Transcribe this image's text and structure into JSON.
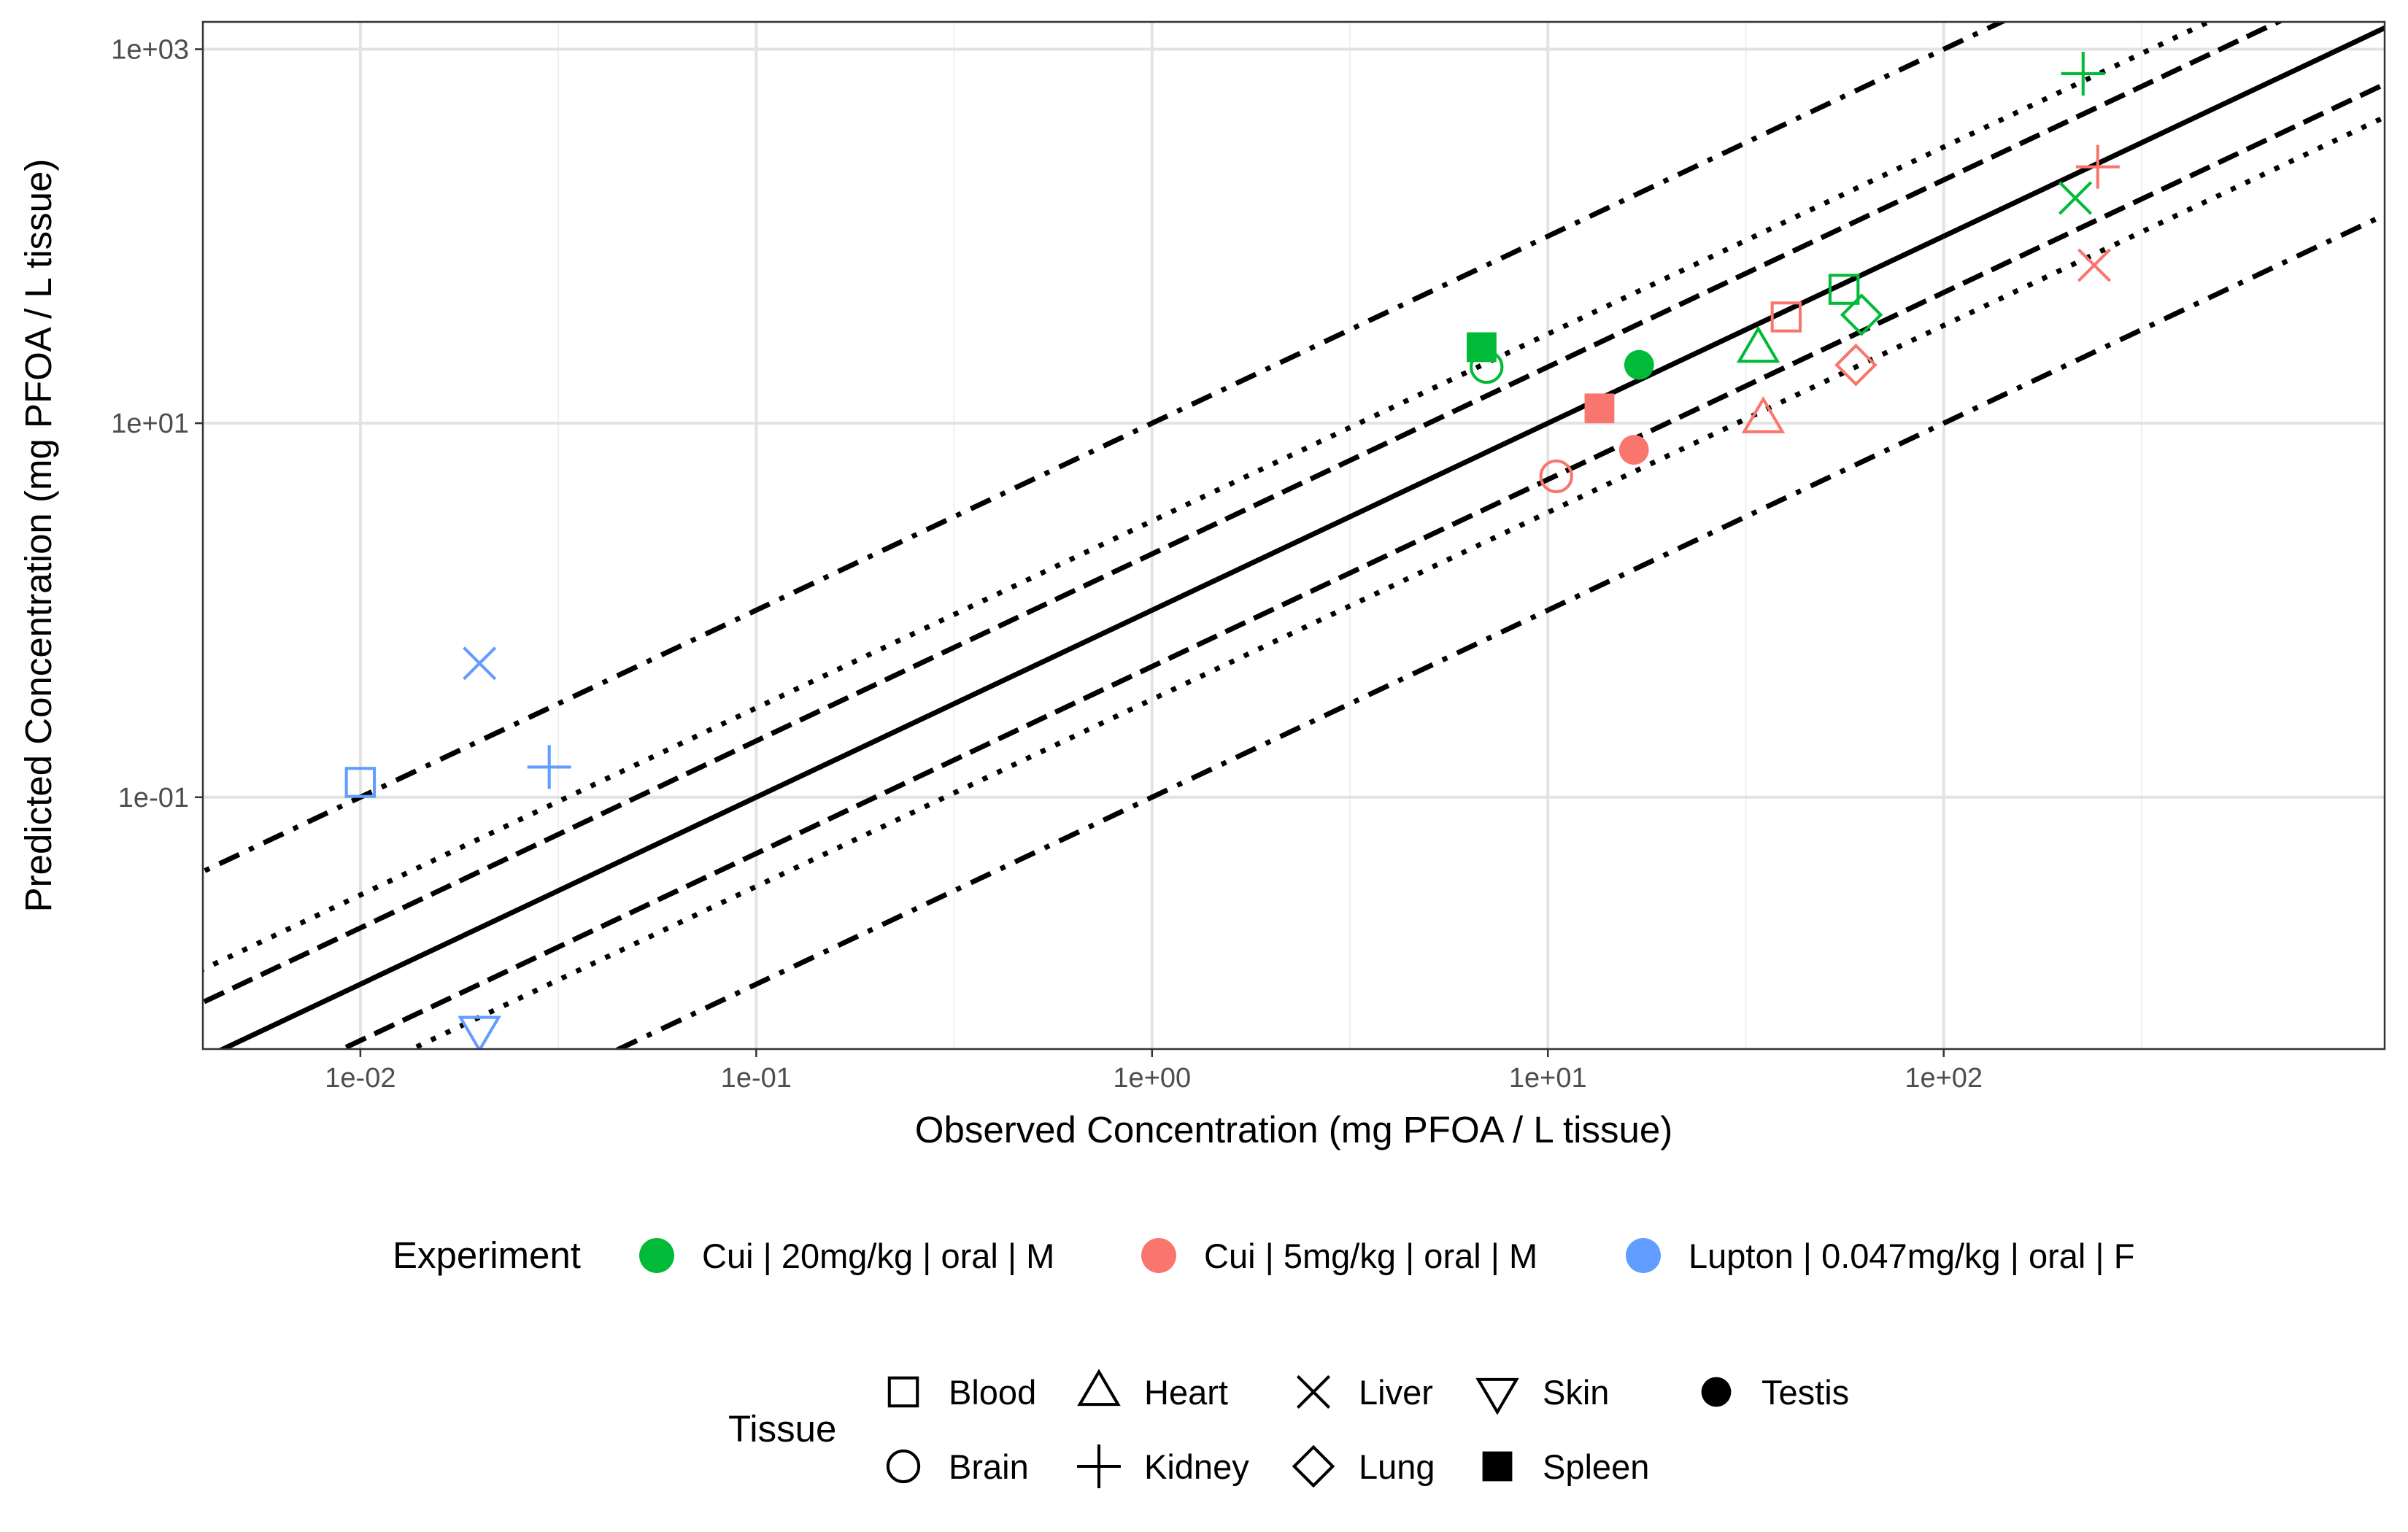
{
  "chart_data": {
    "type": "scatter",
    "x_scale": "log10",
    "y_scale": "log10",
    "xlim": [
      0.004,
      1300
    ],
    "ylim": [
      0.0045,
      1400
    ],
    "grid": true,
    "xlabel": "Observed Concentration (mg PFOA / L tissue)",
    "ylabel": "Predicted Concentration (mg PFOA / L tissue)",
    "x_ticks": [
      {
        "value": 0.01,
        "label": "1e-02"
      },
      {
        "value": 0.1,
        "label": "1e-01"
      },
      {
        "value": 1,
        "label": "1e+00"
      },
      {
        "value": 10,
        "label": "1e+01"
      },
      {
        "value": 100,
        "label": "1e+02"
      }
    ],
    "y_ticks": [
      {
        "value": 0.1,
        "label": "1e-01"
      },
      {
        "value": 10,
        "label": "1e+01"
      },
      {
        "value": 1000,
        "label": "1e+03"
      }
    ],
    "reference_lines": [
      {
        "ratio": 1,
        "style": "solid"
      },
      {
        "ratio": 2,
        "style": "dashed"
      },
      {
        "ratio": 0.5,
        "style": "dashed"
      },
      {
        "ratio": 3,
        "style": "dotted"
      },
      {
        "ratio": 0.3333,
        "style": "dotted"
      },
      {
        "ratio": 10,
        "style": "dotdash"
      },
      {
        "ratio": 0.1,
        "style": "dotdash"
      }
    ],
    "experiments": [
      {
        "key": "cui20",
        "label": "Cui | 20mg/kg | oral | M",
        "color": "#00BA38"
      },
      {
        "key": "cui5",
        "label": "Cui | 5mg/kg | oral | M",
        "color": "#F8766D"
      },
      {
        "key": "lupton",
        "label": "Lupton | 0.047mg/kg | oral | F",
        "color": "#619CFF"
      }
    ],
    "tissues": [
      {
        "key": "blood",
        "label": "Blood",
        "shape": "square-open"
      },
      {
        "key": "brain",
        "label": "Brain",
        "shape": "circle-open"
      },
      {
        "key": "heart",
        "label": "Heart",
        "shape": "triangle-up-open"
      },
      {
        "key": "kidney",
        "label": "Kidney",
        "shape": "plus"
      },
      {
        "key": "liver",
        "label": "Liver",
        "shape": "cross"
      },
      {
        "key": "lung",
        "label": "Lung",
        "shape": "diamond-open"
      },
      {
        "key": "skin",
        "label": "Skin",
        "shape": "triangle-down-open"
      },
      {
        "key": "spleen",
        "label": "Spleen",
        "shape": "square-filled"
      },
      {
        "key": "testis",
        "label": "Testis",
        "shape": "circle-filled"
      }
    ],
    "points": [
      {
        "experiment": "cui20",
        "tissue": "kidney",
        "x": 225,
        "y": 740
      },
      {
        "experiment": "cui20",
        "tissue": "liver",
        "x": 215,
        "y": 160
      },
      {
        "experiment": "cui20",
        "tissue": "blood",
        "x": 56,
        "y": 52
      },
      {
        "experiment": "cui20",
        "tissue": "lung",
        "x": 62,
        "y": 38
      },
      {
        "experiment": "cui20",
        "tissue": "heart",
        "x": 34,
        "y": 25
      },
      {
        "experiment": "cui20",
        "tissue": "spleen",
        "x": 6.8,
        "y": 25.5
      },
      {
        "experiment": "cui20",
        "tissue": "brain",
        "x": 7.0,
        "y": 20
      },
      {
        "experiment": "cui20",
        "tissue": "testis",
        "x": 17,
        "y": 20.5
      },
      {
        "experiment": "cui5",
        "tissue": "kidney",
        "x": 245,
        "y": 235
      },
      {
        "experiment": "cui5",
        "tissue": "liver",
        "x": 240,
        "y": 70
      },
      {
        "experiment": "cui5",
        "tissue": "blood",
        "x": 40,
        "y": 37
      },
      {
        "experiment": "cui5",
        "tissue": "lung",
        "x": 60,
        "y": 20.5
      },
      {
        "experiment": "cui5",
        "tissue": "heart",
        "x": 35,
        "y": 10.5
      },
      {
        "experiment": "cui5",
        "tissue": "spleen",
        "x": 13.5,
        "y": 12
      },
      {
        "experiment": "cui5",
        "tissue": "testis",
        "x": 16.5,
        "y": 7.2
      },
      {
        "experiment": "cui5",
        "tissue": "brain",
        "x": 10.5,
        "y": 5.2
      },
      {
        "experiment": "lupton",
        "tissue": "liver",
        "x": 0.02,
        "y": 0.52
      },
      {
        "experiment": "lupton",
        "tissue": "kidney",
        "x": 0.03,
        "y": 0.145
      },
      {
        "experiment": "lupton",
        "tissue": "blood",
        "x": 0.01,
        "y": 0.12
      },
      {
        "experiment": "lupton",
        "tissue": "skin",
        "x": 0.02,
        "y": 0.0057
      }
    ]
  },
  "legend": {
    "experiment_title": "Experiment",
    "tissue_title": "Tissue"
  }
}
